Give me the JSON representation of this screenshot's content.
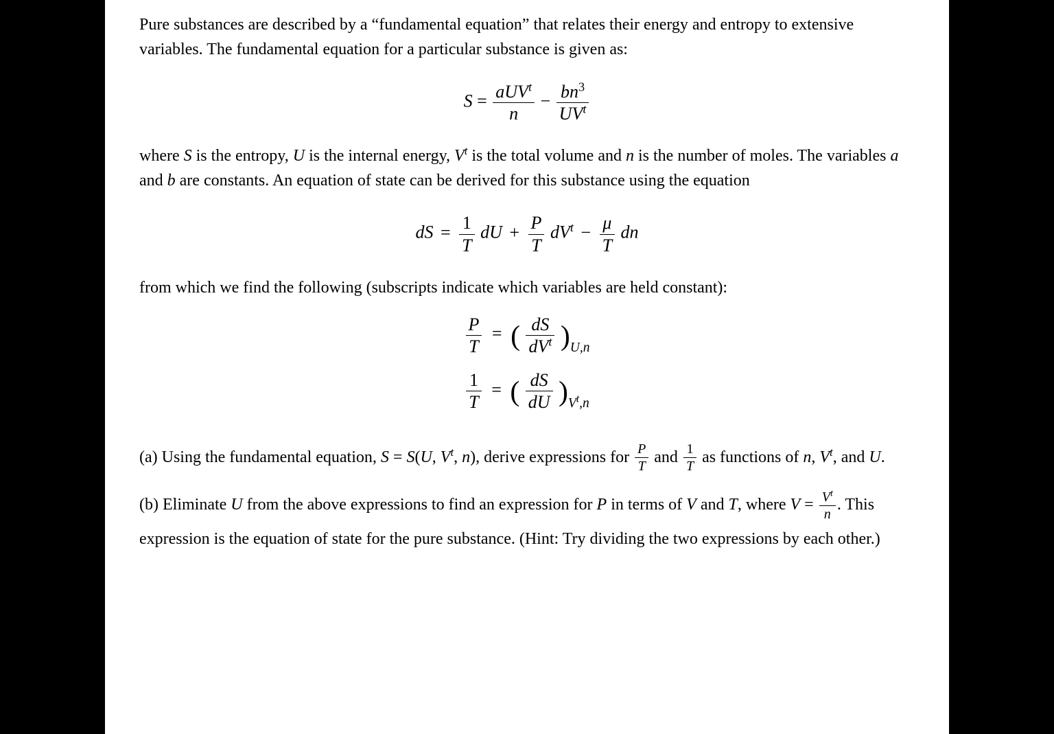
{
  "para1": "Pure substances are described by a “fundamental equation” that relates their energy and entropy to extensive variables. The fundamental equation for a particular substance is given as:",
  "eq1": {
    "lhs": "S",
    "t1_num_a": "a",
    "t1_num_U": "U",
    "t1_num_V": "V",
    "t1_num_sup": "t",
    "t1_den": "n",
    "minus": "−",
    "t2_num_b": "b",
    "t2_num_n": "n",
    "t2_num_sup": "3",
    "t2_den_U": "U",
    "t2_den_V": "V",
    "t2_den_sup": "t"
  },
  "para2_a": "where ",
  "para2_S": "S",
  "para2_b": " is the entropy, ",
  "para2_U": "U",
  "para2_c": " is the internal energy, ",
  "para2_Vt_V": "V",
  "para2_Vt_t": "t",
  "para2_d": " is the total volume and ",
  "para2_n": "n",
  "para2_e": " is the number of moles. The variables ",
  "para2_av": "a",
  "para2_f": " and ",
  "para2_bv": "b",
  "para2_g": " are constants. An equation of state can be derived for this substance using the equation",
  "eq2": {
    "dS": "dS",
    "eq": "=",
    "f1_num": "1",
    "f1_den": "T",
    "dU": "dU",
    "plus": "+",
    "f2_num": "P",
    "f2_den": "T",
    "dVt_dV": "dV",
    "dVt_t": "t",
    "minus": "−",
    "f3_num": "μ",
    "f3_den": "T",
    "dn": "dn"
  },
  "para3": "from which we find the following (subscripts indicate which variables are held constant):",
  "eq3": {
    "lhs_num": "P",
    "lhs_den": "T",
    "eq": "=",
    "rhs_num": "dS",
    "rhs_den_dV": "dV",
    "rhs_den_t": "t",
    "sub": "U,n"
  },
  "eq4": {
    "lhs_num": "1",
    "lhs_den": "T",
    "eq": "=",
    "rhs_num": "dS",
    "rhs_den": "dU",
    "sub_V": "V",
    "sub_t": "t",
    "sub_n": ",n"
  },
  "partA_a": "(a) Using the fundamental equation, ",
  "partA_eq_S": "S",
  "partA_eq_eq": " = ",
  "partA_eq_rhs_S": "S",
  "partA_eq_rhs_open": "(",
  "partA_eq_rhs_U": "U",
  "partA_eq_rhs_c1": ", ",
  "partA_eq_rhs_V": "V",
  "partA_eq_rhs_t": "t",
  "partA_eq_rhs_c2": ", ",
  "partA_eq_rhs_n": "n",
  "partA_eq_rhs_close": ")",
  "partA_b": ", derive expressions for ",
  "partA_f1_num": "P",
  "partA_f1_den": "T",
  "partA_c": " and ",
  "partA_f2_num": "1",
  "partA_f2_den": "T",
  "partA_d": " as functions of ",
  "partA_n": "n",
  "partA_e": ", ",
  "partA_Vt_V": "V",
  "partA_Vt_t": "t",
  "partA_f": ", and ",
  "partA_U": "U",
  "partA_g": ".",
  "partB_a": "(b) Eliminate ",
  "partB_U1": "U",
  "partB_b": " from the above expressions to find an expression for ",
  "partB_P": "P",
  "partB_c": " in terms of ",
  "partB_V1": "V",
  "partB_d": " and ",
  "partB_T": "T",
  "partB_e": ", where ",
  "partB_Veq_V": "V",
  "partB_Veq_eq": " = ",
  "partB_Veq_num_V": "V",
  "partB_Veq_num_t": "t",
  "partB_Veq_den": "n",
  "partB_f": ". This expression is the equation of state for the pure substance. (Hint: Try dividing the two expressions by each other.)"
}
